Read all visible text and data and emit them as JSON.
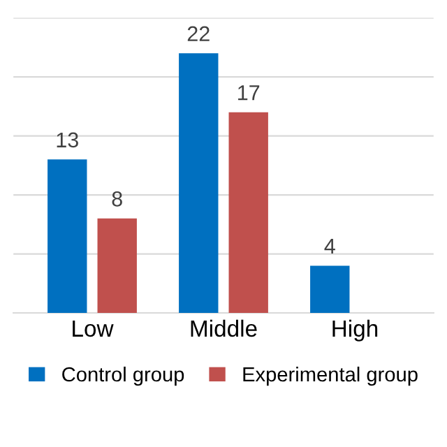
{
  "chart_data": {
    "type": "bar",
    "categories": [
      "Low",
      "Middle",
      "High"
    ],
    "series": [
      {
        "name": "Control group",
        "color": "#0070c0",
        "values": [
          13,
          22,
          4
        ]
      },
      {
        "name": "Experimental group",
        "color": "#c0504d",
        "values": [
          8,
          17,
          null
        ]
      }
    ],
    "ylim": [
      0,
      25
    ],
    "yticks": [
      {
        "value": 0,
        "label": null
      },
      {
        "value": 5,
        "label": null
      },
      {
        "value": 10,
        "label": null
      },
      {
        "value": 15,
        "label": null
      },
      {
        "value": 20,
        "label": null
      },
      {
        "value": 25,
        "label": null
      }
    ],
    "grid": "y",
    "legend": "bottom",
    "data_labels": true,
    "tick_labels": "x"
  }
}
